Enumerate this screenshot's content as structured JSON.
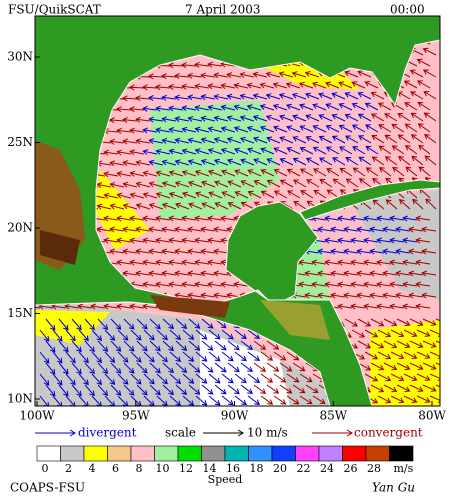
{
  "header": {
    "source": "FSU/QuikSCAT",
    "date": "7 April 2003",
    "time": "00:00"
  },
  "map": {
    "lat_labels": [
      "30N",
      "25N",
      "20N",
      "15N",
      "10N"
    ],
    "lon_labels": [
      "100W",
      "95W",
      "90W",
      "85W",
      "80W"
    ]
  },
  "legend": {
    "divergent": "divergent",
    "scale": "scale",
    "scale_value": "10 m/s",
    "convergent": "convergent",
    "divergent_color": "#0000cc",
    "convergent_color": "#a00000"
  },
  "colorbar": {
    "labels": [
      "0",
      "2",
      "4",
      "6",
      "8",
      "10",
      "12",
      "14",
      "16",
      "18",
      "20",
      "22",
      "24",
      "26",
      "28"
    ],
    "unit": "m/s",
    "title": "Speed",
    "colors": [
      "#ffffff",
      "#c8c8c8",
      "#ffff00",
      "#f6c88a",
      "#ffc0c8",
      "#a0f0a0",
      "#00e000",
      "#909090",
      "#00b4b4",
      "#3090ff",
      "#1040ff",
      "#ff40ff",
      "#c080ff",
      "#ff0000",
      "#c84000",
      "#000000"
    ]
  },
  "footer": {
    "institution": "COAPS-FSU",
    "signature": "Yan Gu"
  }
}
